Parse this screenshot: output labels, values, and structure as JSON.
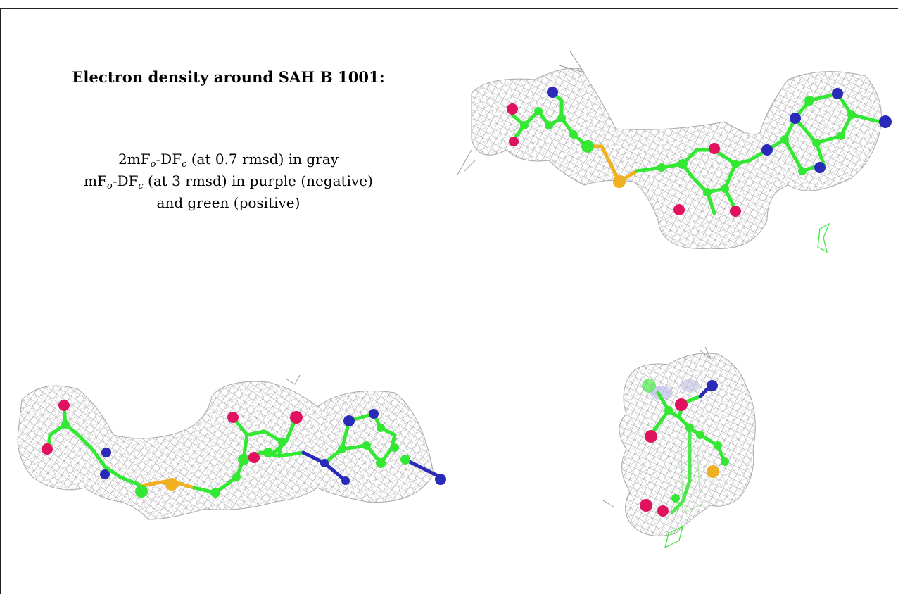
{
  "caption": {
    "title": "Electron density around SAH B 1001:",
    "line1": {
      "pre": "2mF",
      "sub1": "o",
      "mid": "-DF",
      "sub2": "c",
      "post": " (at 0.7 rmsd) in gray"
    },
    "line2": {
      "pre": "mF",
      "sub1": "o",
      "mid": "-DF",
      "sub2": "c",
      "post": " (at 3 rmsd) in purple (negative)"
    },
    "line3": "and green (positive)"
  },
  "colors": {
    "mesh": "#8a8a8a",
    "carbon": "#33e833",
    "oxygen": "#e0115f",
    "nitrogen": "#2a2ab8",
    "sulfur": "#f0b020",
    "positive_density": "#33e833",
    "grid_lines": "#222222"
  }
}
